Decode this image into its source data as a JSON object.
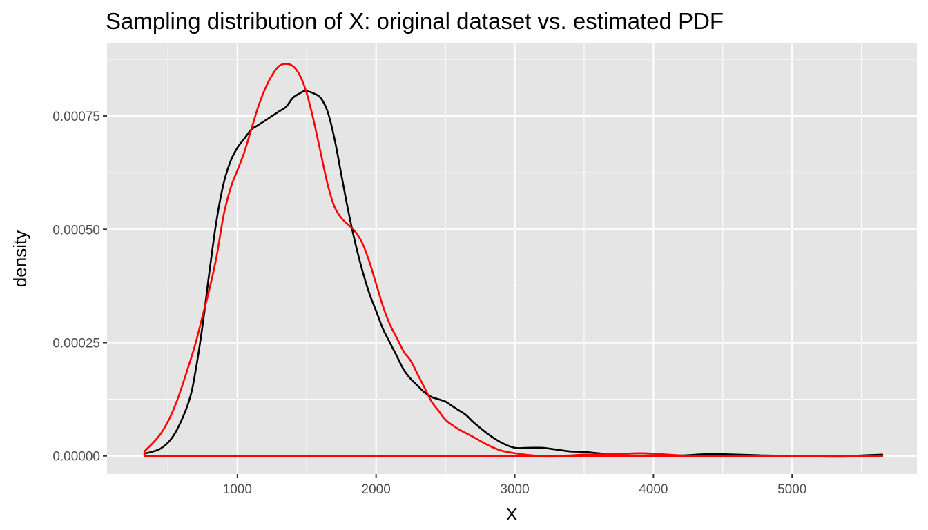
{
  "chart_data": {
    "type": "line",
    "title": "Sampling distribution of X: original dataset vs. estimated PDF",
    "xlabel": "X",
    "ylabel": "density",
    "xlim": [
      60,
      5900
    ],
    "ylim": [
      -4e-05,
      0.00091
    ],
    "x_ticks": [
      1000,
      2000,
      3000,
      4000,
      5000
    ],
    "x_tick_labels": [
      "1000",
      "2000",
      "3000",
      "4000",
      "5000"
    ],
    "y_ticks": [
      0,
      0.00025,
      0.0005,
      0.00075
    ],
    "y_tick_labels": [
      "0.00000",
      "0.00025",
      "0.00050",
      "0.00075"
    ],
    "grid": true,
    "legend": "none",
    "colors": {
      "panel": "#e5e5e5",
      "grid": "#ffffff",
      "tick_text": "#4d4d4d"
    },
    "series": [
      {
        "color": "#000000",
        "x": [
          330,
          450,
          550,
          650,
          700,
          750,
          800,
          850,
          900,
          950,
          1000,
          1050,
          1100,
          1150,
          1200,
          1250,
          1300,
          1350,
          1400,
          1450,
          1480,
          1500,
          1550,
          1600,
          1650,
          1700,
          1750,
          1800,
          1850,
          1900,
          1950,
          2000,
          2050,
          2100,
          2150,
          2200,
          2250,
          2300,
          2350,
          2400,
          2450,
          2500,
          2550,
          2600,
          2650,
          2700,
          2800,
          2900,
          3000,
          3100,
          3200,
          3300,
          3400,
          3500,
          3600,
          3700,
          3800,
          4000,
          4200,
          4400,
          4600,
          4800,
          5000,
          5200,
          5400,
          5650
        ],
        "y": [
          5e-06,
          1.7e-05,
          5e-05,
          0.00012,
          0.00019,
          0.00029,
          0.00041,
          0.00052,
          0.0006,
          0.00065,
          0.00068,
          0.0007,
          0.00072,
          0.00073,
          0.00074,
          0.00075,
          0.00076,
          0.00077,
          0.00079,
          0.0008,
          0.000805,
          0.000805,
          0.0008,
          0.00079,
          0.00076,
          0.0007,
          0.00062,
          0.00054,
          0.00047,
          0.00041,
          0.00036,
          0.00032,
          0.00028,
          0.00025,
          0.00022,
          0.00019,
          0.00017,
          0.000155,
          0.00014,
          0.00013,
          0.000125,
          0.00012,
          0.00011,
          0.0001,
          9e-05,
          7.5e-05,
          5e-05,
          3e-05,
          1.8e-05,
          1.8e-05,
          1.8e-05,
          1.4e-05,
          1e-05,
          9e-06,
          6e-06,
          3e-06,
          1e-06,
          1e-06,
          1e-06,
          4e-06,
          3e-06,
          1e-06,
          0,
          0,
          0,
          3e-06
        ]
      },
      {
        "color": "#ff0000",
        "x": [
          330,
          450,
          550,
          650,
          700,
          750,
          800,
          850,
          900,
          950,
          1000,
          1050,
          1100,
          1150,
          1200,
          1250,
          1300,
          1350,
          1400,
          1450,
          1500,
          1550,
          1600,
          1650,
          1700,
          1750,
          1800,
          1850,
          1900,
          1950,
          2000,
          2050,
          2100,
          2150,
          2200,
          2250,
          2300,
          2350,
          2400,
          2450,
          2500,
          2550,
          2600,
          2650,
          2700,
          2800,
          2900,
          3000,
          3100,
          3200,
          3300,
          3400,
          3500,
          3600,
          3700,
          3800,
          3900,
          4000,
          4100,
          4200,
          4300,
          4400,
          4600,
          4800,
          5000,
          5200,
          5400,
          5650
        ],
        "y": [
          1e-05,
          5e-05,
          0.00011,
          0.0002,
          0.00025,
          0.00031,
          0.00037,
          0.00044,
          0.00053,
          0.00059,
          0.00063,
          0.00067,
          0.00072,
          0.00077,
          0.00081,
          0.00084,
          0.00086,
          0.000865,
          0.00086,
          0.00084,
          0.0008,
          0.00074,
          0.00067,
          0.0006,
          0.00055,
          0.000525,
          0.00051,
          0.000495,
          0.00047,
          0.00043,
          0.00038,
          0.00033,
          0.00029,
          0.00026,
          0.00023,
          0.00021,
          0.00018,
          0.00015,
          0.00012,
          0.0001,
          8e-05,
          6.8e-05,
          5.8e-05,
          5e-05,
          4.2e-05,
          2.5e-05,
          1.2e-05,
          6e-06,
          2e-06,
          0,
          0,
          1e-06,
          3e-06,
          3e-06,
          4e-06,
          5e-06,
          6e-06,
          5e-06,
          3e-06,
          1e-06,
          0,
          0,
          0,
          0,
          0,
          0,
          0,
          0
        ]
      }
    ]
  }
}
